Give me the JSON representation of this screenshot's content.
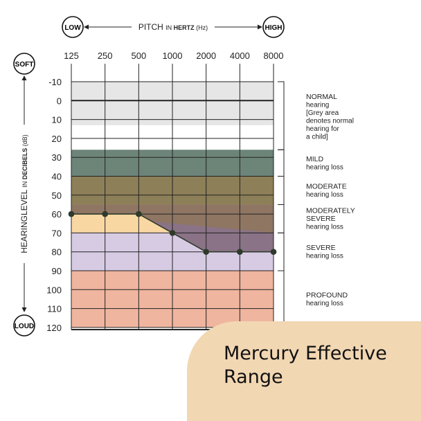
{
  "chart_data": {
    "type": "audiogram",
    "pitch_axis": {
      "low_label": "LOW",
      "high_label": "HIGH",
      "title": "PITCH",
      "title_in": "IN",
      "title_unit": "HERTZ",
      "title_abbrev": "(Hz)"
    },
    "level_axis": {
      "soft_label": "SOFT",
      "loud_label": "LOUD",
      "title": "HEARINGLEVEL",
      "title_in": "IN",
      "title_unit": "DECIBELS",
      "title_abbrev": "(dB)"
    },
    "x_ticks": [
      "125",
      "250",
      "500",
      "1000",
      "2000",
      "4000",
      "8000"
    ],
    "y_ticks": [
      "-10",
      "0",
      "10",
      "20",
      "30",
      "40",
      "50",
      "60",
      "70",
      "80",
      "90",
      "100",
      "110",
      "120"
    ],
    "ylim": [
      -10,
      120
    ],
    "bands": [
      {
        "name": "normal-band",
        "from": -10,
        "to": 13,
        "color": "#e6e6e6"
      },
      {
        "name": "mild-band",
        "from": 26,
        "to": 40,
        "color": "#6d8479"
      },
      {
        "name": "moderate-band",
        "from": 40,
        "to": 55,
        "color": "#8d7f58"
      },
      {
        "name": "moderately-severe-band",
        "from": 55,
        "to": 70,
        "color": "#8f7663"
      },
      {
        "name": "severe-band",
        "from": 70,
        "to": 90,
        "color": "#d7cbe4"
      },
      {
        "name": "profound-band",
        "from": 90,
        "to": 120,
        "color": "#efb59f"
      }
    ],
    "effective_range": {
      "name": "Mercury Effective Range",
      "frequencies": [
        125,
        250,
        500,
        1000,
        2000,
        4000,
        8000
      ],
      "values": [
        60,
        60,
        60,
        70,
        80,
        80,
        80
      ],
      "fill_color": "#f9d7a3",
      "shadow_color": "#8a7386"
    },
    "categories": [
      {
        "title": [
          "NORMAL"
        ],
        "desc": [
          "hearing",
          "[Grey area",
          "denotes normal",
          "hearing for",
          "a child]"
        ],
        "from": -10,
        "to": 26
      },
      {
        "title": [
          "MILD"
        ],
        "desc": [
          "hearing loss"
        ],
        "from": 26,
        "to": 40
      },
      {
        "title": [
          "MODERATE"
        ],
        "desc": [
          "hearing loss"
        ],
        "from": 40,
        "to": 55
      },
      {
        "title": [
          "MODERATELY",
          "SEVERE"
        ],
        "desc": [
          "hearing loss"
        ],
        "from": 55,
        "to": 70
      },
      {
        "title": [
          "SEVERE"
        ],
        "desc": [
          "hearing loss"
        ],
        "from": 70,
        "to": 90
      },
      {
        "title": [
          "PROFOUND"
        ],
        "desc": [
          "hearing loss"
        ],
        "from": 90,
        "to": 120
      }
    ]
  },
  "badge": {
    "text": "Mercury Effective Range"
  }
}
